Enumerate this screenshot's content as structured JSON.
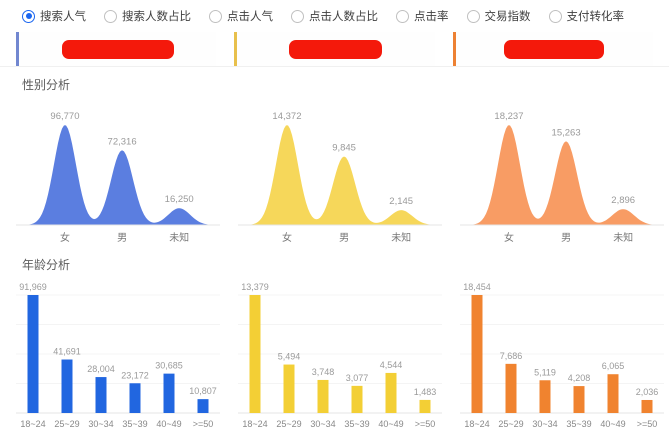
{
  "controls": {
    "radios": [
      {
        "label": "搜索人气",
        "selected": true
      },
      {
        "label": "搜索人数占比",
        "selected": false
      },
      {
        "label": "点击人气",
        "selected": false
      },
      {
        "label": "点击人数占比",
        "selected": false
      },
      {
        "label": "点击率",
        "selected": false
      },
      {
        "label": "交易指数",
        "selected": false
      },
      {
        "label": "支付转化率",
        "selected": false
      }
    ]
  },
  "header": {
    "columns": [
      {
        "accent_color": "#7287d0",
        "redacted": true,
        "redacted_width": 112
      },
      {
        "accent_color": "#e8c04c",
        "redacted": true,
        "redacted_width": 93
      },
      {
        "accent_color": "#ed8133",
        "redacted": true,
        "redacted_width": 100
      }
    ],
    "redaction_color": "#f4190b"
  },
  "sections": {
    "gender_title": "性别分析",
    "age_title": "年龄分析"
  },
  "chart_data": [
    {
      "type": "area",
      "section": "性别分析",
      "column": 1,
      "color": "#5b7ee0",
      "categories": [
        "女",
        "男",
        "未知"
      ],
      "values": [
        96770,
        72316,
        16250
      ],
      "title": "",
      "xlabel": "",
      "ylabel": "",
      "grid": false,
      "legend": "none"
    },
    {
      "type": "area",
      "section": "性别分析",
      "column": 2,
      "color": "#f6d75a",
      "categories": [
        "女",
        "男",
        "未知"
      ],
      "values": [
        14372,
        9845,
        2145
      ],
      "title": "",
      "xlabel": "",
      "ylabel": "",
      "grid": false,
      "legend": "none"
    },
    {
      "type": "area",
      "section": "性别分析",
      "column": 3,
      "color": "#f89c64",
      "categories": [
        "女",
        "男",
        "未知"
      ],
      "values": [
        18237,
        15263,
        2896
      ],
      "title": "",
      "xlabel": "",
      "ylabel": "",
      "grid": false,
      "legend": "none"
    },
    {
      "type": "bar",
      "section": "年龄分析",
      "column": 1,
      "color": "#2166e0",
      "categories": [
        "18~24",
        "25~29",
        "30~34",
        "35~39",
        "40~49",
        ">=50"
      ],
      "values": [
        91969,
        41691,
        28004,
        23172,
        30685,
        10807
      ],
      "title": "",
      "xlabel": "",
      "ylabel": "",
      "grid": true,
      "legend": "none"
    },
    {
      "type": "bar",
      "section": "年龄分析",
      "column": 2,
      "color": "#f3cf35",
      "categories": [
        "18~24",
        "25~29",
        "30~34",
        "35~39",
        "40~49",
        ">=50"
      ],
      "values": [
        13379,
        5494,
        3748,
        3077,
        4544,
        1483
      ],
      "title": "",
      "xlabel": "",
      "ylabel": "",
      "grid": true,
      "legend": "none"
    },
    {
      "type": "bar",
      "section": "年龄分析",
      "column": 3,
      "color": "#f0832f",
      "categories": [
        "18~24",
        "25~29",
        "30~34",
        "35~39",
        "40~49",
        ">=50"
      ],
      "values": [
        18454,
        7686,
        5119,
        4208,
        6065,
        2036
      ],
      "title": "",
      "xlabel": "",
      "ylabel": "",
      "grid": true,
      "legend": "none"
    }
  ]
}
